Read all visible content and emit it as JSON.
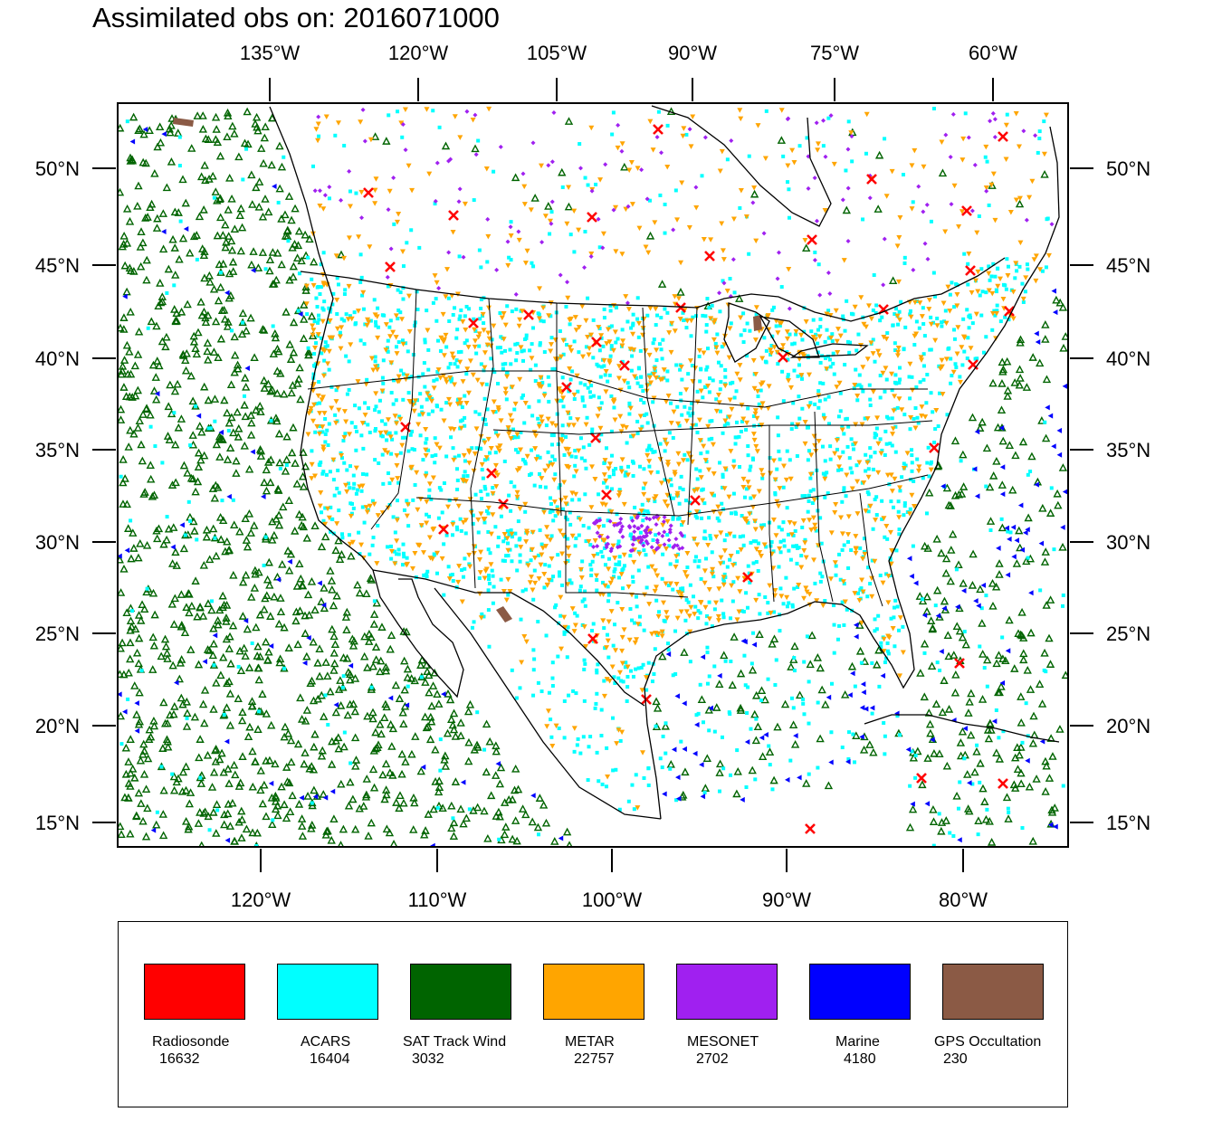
{
  "title": "Assimilated obs on: 2016071000",
  "map": {
    "top_lon_labels": [
      "135°W",
      "120°W",
      "105°W",
      "90°W",
      "75°W",
      "60°W"
    ],
    "bottom_lon_labels": [
      "120°W",
      "110°W",
      "100°W",
      "90°W",
      "80°W"
    ],
    "lat_labels": [
      "50°N",
      "45°N",
      "40°N",
      "35°N",
      "30°N",
      "25°N",
      "20°N",
      "15°N"
    ]
  },
  "legend": [
    {
      "name": "Radiosonde",
      "count": "16632",
      "color": "#ff0000",
      "marker": "x"
    },
    {
      "name": "ACARS",
      "count": "16404",
      "color": "#00ffff",
      "marker": "square"
    },
    {
      "name": "SAT Track Wind",
      "count": "3032",
      "color": "#006400",
      "marker": "triangle-up"
    },
    {
      "name": "METAR",
      "count": "22757",
      "color": "#ffa500",
      "marker": "triangle-down"
    },
    {
      "name": "MESONET",
      "count": "2702",
      "color": "#a020f0",
      "marker": "diamond"
    },
    {
      "name": "Marine",
      "count": "4180",
      "color": "#0000ff",
      "marker": "triangle-left"
    },
    {
      "name": "GPS Occultation",
      "count": "230",
      "color": "#8b5a45",
      "marker": "polygon"
    }
  ]
}
